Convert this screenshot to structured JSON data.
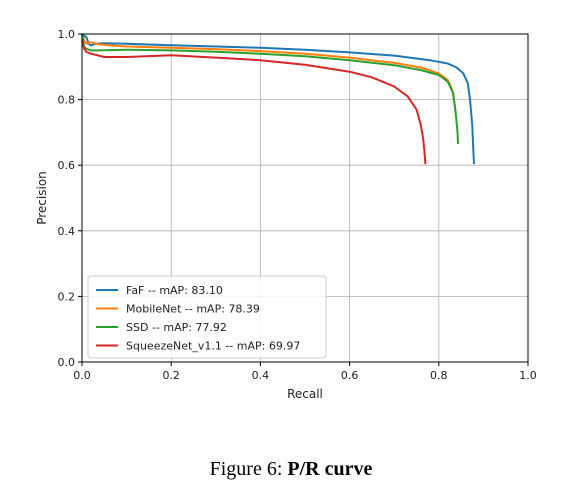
{
  "chart_data": {
    "type": "line",
    "xlabel": "Recall",
    "ylabel": "Precision",
    "xlim": [
      0.0,
      1.0
    ],
    "ylim": [
      0.0,
      1.0
    ],
    "xticks": [
      "0.0",
      "0.2",
      "0.4",
      "0.6",
      "0.8",
      "1.0"
    ],
    "yticks": [
      "0.0",
      "0.2",
      "0.4",
      "0.6",
      "0.8",
      "1.0"
    ],
    "grid": true,
    "legend_position": "lower-left",
    "series": [
      {
        "name": "FaF -- mAP: 83.10",
        "color": "#1f77b4",
        "points": [
          [
            0.0,
            1.0
          ],
          [
            0.005,
            0.995
          ],
          [
            0.01,
            0.99
          ],
          [
            0.015,
            0.97
          ],
          [
            0.02,
            0.965
          ],
          [
            0.03,
            0.97
          ],
          [
            0.05,
            0.972
          ],
          [
            0.1,
            0.97
          ],
          [
            0.2,
            0.966
          ],
          [
            0.3,
            0.962
          ],
          [
            0.4,
            0.958
          ],
          [
            0.5,
            0.952
          ],
          [
            0.6,
            0.944
          ],
          [
            0.7,
            0.934
          ],
          [
            0.78,
            0.92
          ],
          [
            0.82,
            0.91
          ],
          [
            0.84,
            0.898
          ],
          [
            0.855,
            0.88
          ],
          [
            0.865,
            0.85
          ],
          [
            0.87,
            0.8
          ],
          [
            0.875,
            0.72
          ],
          [
            0.877,
            0.66
          ],
          [
            0.879,
            0.603
          ]
        ]
      },
      {
        "name": "MobileNet -- mAP: 78.39",
        "color": "#ff7f0e",
        "points": [
          [
            0.0,
            1.0
          ],
          [
            0.005,
            0.98
          ],
          [
            0.01,
            0.97
          ],
          [
            0.02,
            0.975
          ],
          [
            0.04,
            0.968
          ],
          [
            0.1,
            0.962
          ],
          [
            0.2,
            0.958
          ],
          [
            0.3,
            0.954
          ],
          [
            0.4,
            0.948
          ],
          [
            0.5,
            0.94
          ],
          [
            0.6,
            0.928
          ],
          [
            0.7,
            0.912
          ],
          [
            0.76,
            0.898
          ],
          [
            0.8,
            0.88
          ],
          [
            0.82,
            0.86
          ],
          [
            0.83,
            0.83
          ],
          [
            0.835,
            0.79
          ],
          [
            0.838,
            0.76
          ]
        ]
      },
      {
        "name": "SSD -- mAP: 77.92",
        "color": "#2ca02c",
        "points": [
          [
            0.0,
            1.0
          ],
          [
            0.005,
            0.96
          ],
          [
            0.01,
            0.955
          ],
          [
            0.02,
            0.95
          ],
          [
            0.04,
            0.95
          ],
          [
            0.1,
            0.952
          ],
          [
            0.2,
            0.95
          ],
          [
            0.3,
            0.946
          ],
          [
            0.4,
            0.94
          ],
          [
            0.5,
            0.932
          ],
          [
            0.6,
            0.92
          ],
          [
            0.7,
            0.905
          ],
          [
            0.76,
            0.89
          ],
          [
            0.8,
            0.875
          ],
          [
            0.82,
            0.855
          ],
          [
            0.832,
            0.82
          ],
          [
            0.838,
            0.76
          ],
          [
            0.842,
            0.7
          ],
          [
            0.843,
            0.665
          ]
        ]
      },
      {
        "name": "SqueezeNet_v1.1 -- mAP: 69.97",
        "color": "#d62728",
        "points": [
          [
            0.0,
            0.98
          ],
          [
            0.005,
            0.955
          ],
          [
            0.01,
            0.945
          ],
          [
            0.02,
            0.94
          ],
          [
            0.05,
            0.93
          ],
          [
            0.1,
            0.93
          ],
          [
            0.2,
            0.935
          ],
          [
            0.3,
            0.928
          ],
          [
            0.4,
            0.92
          ],
          [
            0.5,
            0.906
          ],
          [
            0.6,
            0.885
          ],
          [
            0.65,
            0.868
          ],
          [
            0.7,
            0.84
          ],
          [
            0.73,
            0.81
          ],
          [
            0.75,
            0.77
          ],
          [
            0.76,
            0.72
          ],
          [
            0.765,
            0.68
          ],
          [
            0.768,
            0.64
          ],
          [
            0.77,
            0.603
          ]
        ]
      }
    ]
  },
  "caption": {
    "prefix": "Figure 6: ",
    "bold": "P/R curve"
  }
}
